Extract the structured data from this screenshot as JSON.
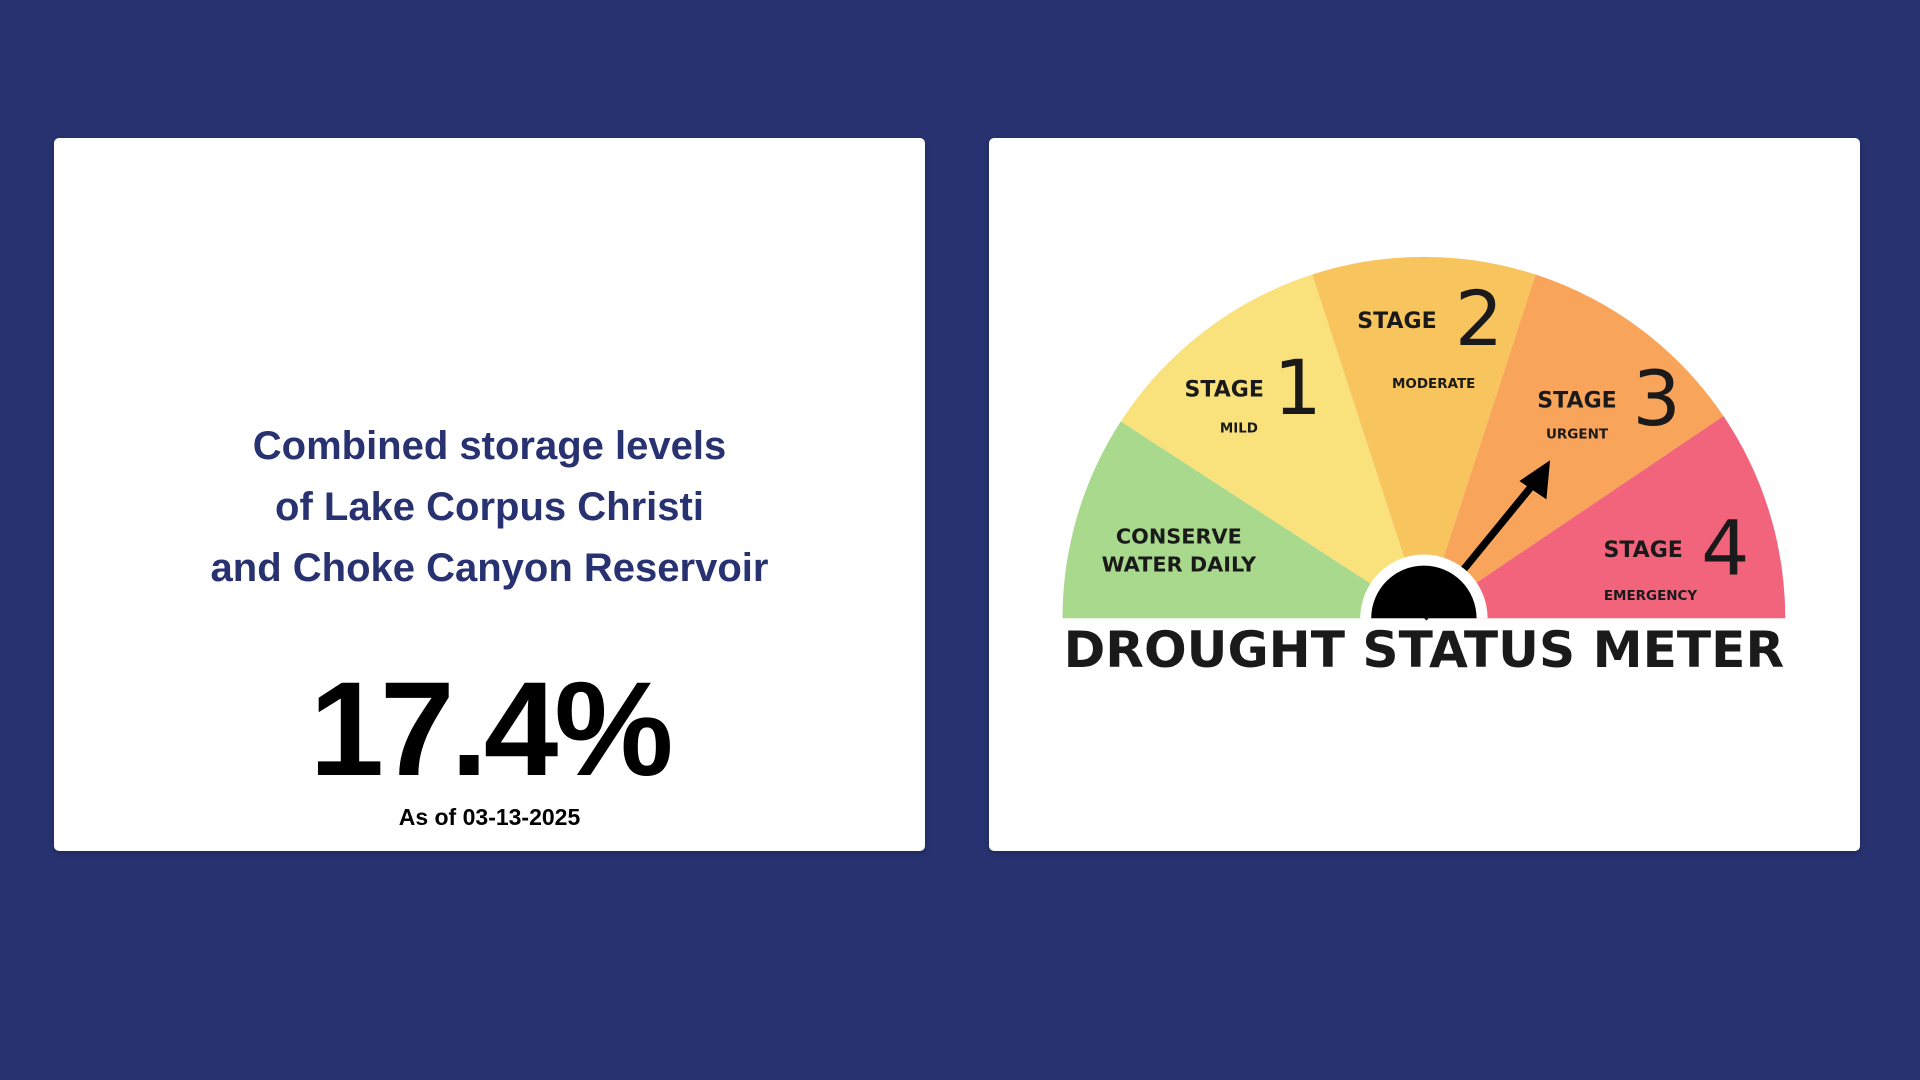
{
  "storage_card": {
    "title_lines": [
      "Combined storage levels",
      "of Lake Corpus Christi",
      "and Choke Canyon Reservoir"
    ],
    "value": "17.4%",
    "as_of": "As of 03-13-2025"
  },
  "meter_card": {
    "conserve_lines": [
      "CONSERVE",
      "WATER DAILY"
    ],
    "stages": [
      {
        "label": "STAGE",
        "number": "1",
        "level": "MILD"
      },
      {
        "label": "STAGE",
        "number": "2",
        "level": "MODERATE"
      },
      {
        "label": "STAGE",
        "number": "3",
        "level": "URGENT"
      },
      {
        "label": "STAGE",
        "number": "4",
        "level": "EMERGENCY"
      }
    ],
    "title": "DROUGHT STATUS METER"
  }
}
